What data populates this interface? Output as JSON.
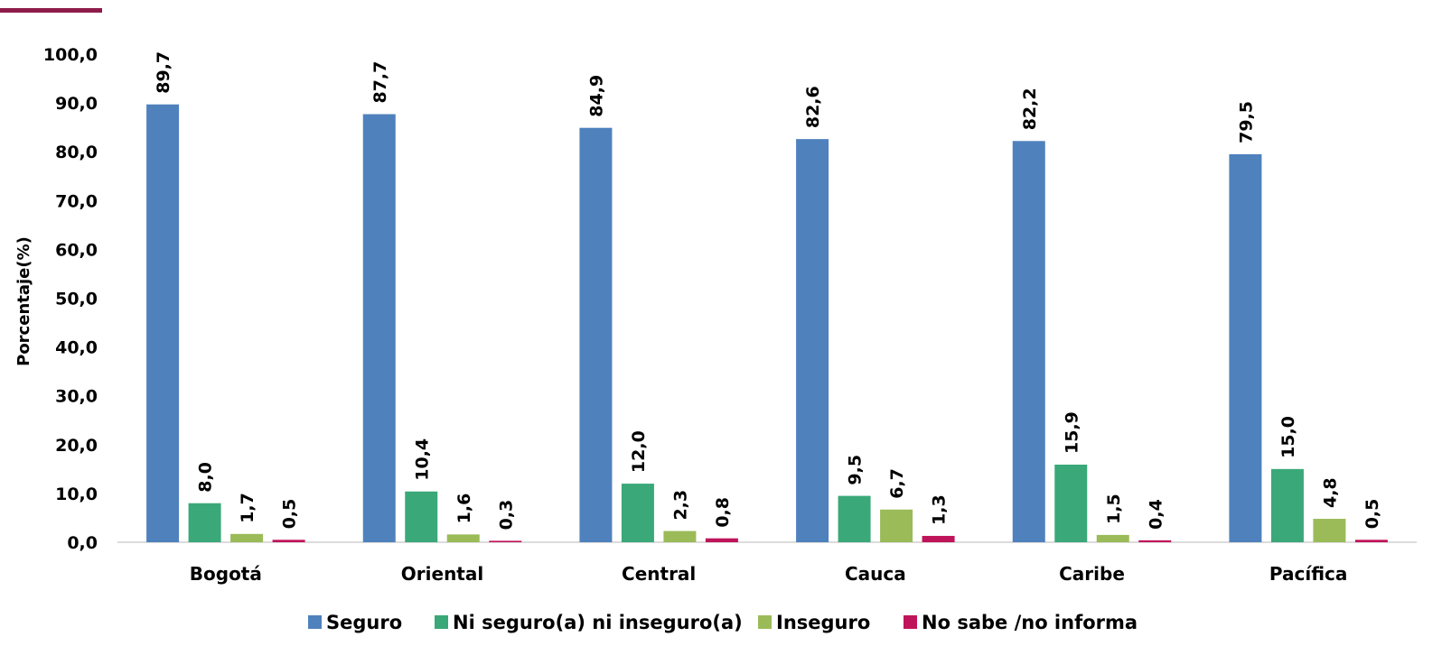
{
  "accent_color": "#8e1b4b",
  "chart_data": {
    "type": "bar",
    "ylabel": "Porcentaje(%)",
    "xlabel": "",
    "ylim": [
      0,
      100
    ],
    "y_ticks": [
      "0,0",
      "10,0",
      "20,0",
      "30,0",
      "40,0",
      "50,0",
      "60,0",
      "70,0",
      "80,0",
      "90,0",
      "100,0"
    ],
    "grid": false,
    "legend_position": "bottom",
    "categories": [
      "Bogotá",
      "Oriental",
      "Central",
      "Cauca",
      "Caribe",
      "Pacífica"
    ],
    "series": [
      {
        "name": "Seguro",
        "color": "#4f81bd",
        "values": [
          89.7,
          87.7,
          84.9,
          82.6,
          82.2,
          79.5
        ],
        "labels": [
          "89,7",
          "87,7",
          "84,9",
          "82,6",
          "82,2",
          "79,5"
        ]
      },
      {
        "name": "Ni seguro(a) ni inseguro(a)",
        "color": "#3aa878",
        "values": [
          8.0,
          10.4,
          12.0,
          9.5,
          15.9,
          15.0
        ],
        "labels": [
          "8,0",
          "10,4",
          "12,0",
          "9,5",
          "15,9",
          "15,0"
        ]
      },
      {
        "name": "Inseguro",
        "color": "#9bbb59",
        "values": [
          1.7,
          1.6,
          2.3,
          6.7,
          1.5,
          4.8
        ],
        "labels": [
          "1,7",
          "1,6",
          "2,3",
          "6,7",
          "1,5",
          "4,8"
        ]
      },
      {
        "name": "No sabe /no informa",
        "color": "#c0145a",
        "values": [
          0.5,
          0.3,
          0.8,
          1.3,
          0.4,
          0.5
        ],
        "labels": [
          "0,5",
          "0,3",
          "0,8",
          "1,3",
          "0,4",
          "0,5"
        ]
      }
    ]
  }
}
